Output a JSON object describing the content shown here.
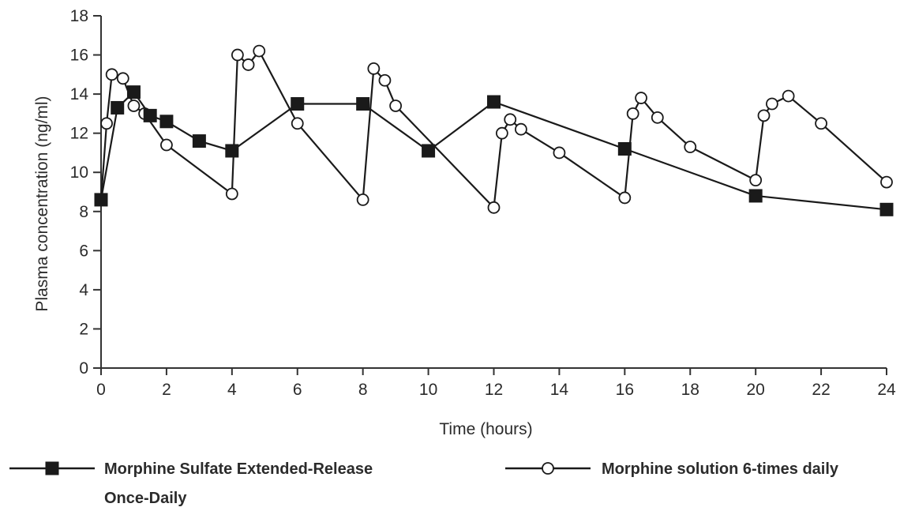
{
  "chart_data": {
    "type": "line",
    "title": "",
    "xlabel": "Time (hours)",
    "ylabel": "Plasma concentration (ng/ml)",
    "xlim": [
      0,
      24
    ],
    "ylim": [
      0,
      18
    ],
    "x_ticks": [
      0,
      2,
      4,
      6,
      8,
      10,
      12,
      14,
      16,
      18,
      20,
      22,
      24
    ],
    "y_ticks": [
      0,
      2,
      4,
      6,
      8,
      10,
      12,
      14,
      16,
      18
    ],
    "grid": false,
    "legend_position": "bottom",
    "series": [
      {
        "name": "Morphine Sulfate Extended-Release Once-Daily",
        "name_lines": [
          "Morphine Sulfate Extended-Release",
          "Once-Daily"
        ],
        "marker": "filled-square",
        "color": "#1a1a1a",
        "points": [
          {
            "x": 0,
            "y": 8.6
          },
          {
            "x": 0.5,
            "y": 13.3
          },
          {
            "x": 1,
            "y": 14.1
          },
          {
            "x": 1.5,
            "y": 12.9
          },
          {
            "x": 2,
            "y": 12.6
          },
          {
            "x": 3,
            "y": 11.6
          },
          {
            "x": 4,
            "y": 11.1
          },
          {
            "x": 6,
            "y": 13.5
          },
          {
            "x": 8,
            "y": 13.5
          },
          {
            "x": 10,
            "y": 11.1
          },
          {
            "x": 12,
            "y": 13.6
          },
          {
            "x": 16,
            "y": 11.2
          },
          {
            "x": 20,
            "y": 8.8
          },
          {
            "x": 24,
            "y": 8.1
          }
        ]
      },
      {
        "name": "Morphine solution 6-times daily",
        "name_lines": [
          "Morphine solution 6-times daily"
        ],
        "marker": "open-circle",
        "color": "#1a1a1a",
        "points": [
          {
            "x": 0,
            "y": 8.6
          },
          {
            "x": 0.17,
            "y": 12.5
          },
          {
            "x": 0.33,
            "y": 15.0
          },
          {
            "x": 0.67,
            "y": 14.8
          },
          {
            "x": 1,
            "y": 13.4
          },
          {
            "x": 1.33,
            "y": 13.0
          },
          {
            "x": 2,
            "y": 11.4
          },
          {
            "x": 4,
            "y": 8.9
          },
          {
            "x": 4.17,
            "y": 16.0
          },
          {
            "x": 4.5,
            "y": 15.5
          },
          {
            "x": 4.83,
            "y": 16.2
          },
          {
            "x": 6,
            "y": 12.5
          },
          {
            "x": 8,
            "y": 8.6
          },
          {
            "x": 8.33,
            "y": 15.3
          },
          {
            "x": 8.67,
            "y": 14.7
          },
          {
            "x": 9,
            "y": 13.4
          },
          {
            "x": 12,
            "y": 8.2
          },
          {
            "x": 12.25,
            "y": 12.0
          },
          {
            "x": 12.5,
            "y": 12.7
          },
          {
            "x": 12.83,
            "y": 12.2
          },
          {
            "x": 14,
            "y": 11.0
          },
          {
            "x": 16,
            "y": 8.7
          },
          {
            "x": 16.25,
            "y": 13.0
          },
          {
            "x": 16.5,
            "y": 13.8
          },
          {
            "x": 17,
            "y": 12.8
          },
          {
            "x": 18,
            "y": 11.3
          },
          {
            "x": 20,
            "y": 9.6
          },
          {
            "x": 20.25,
            "y": 12.9
          },
          {
            "x": 20.5,
            "y": 13.5
          },
          {
            "x": 21,
            "y": 13.9
          },
          {
            "x": 22,
            "y": 12.5
          },
          {
            "x": 24,
            "y": 9.5
          }
        ]
      }
    ]
  }
}
